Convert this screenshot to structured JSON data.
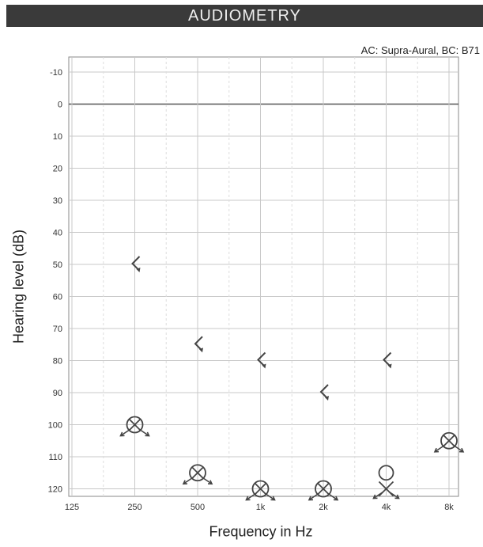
{
  "header": {
    "title": "AUDIOMETRY"
  },
  "subtitle": "AC: Supra-Aural, BC: B71",
  "chart_data": {
    "type": "scatter",
    "title": "AUDIOMETRY",
    "subtitle": "AC: Supra-Aural, BC: B71",
    "xlabel": "Frequency in Hz",
    "ylabel": "Hearing level (dB)",
    "x_categories": [
      "125",
      "250",
      "500",
      "1k",
      "2k",
      "4k",
      "8k"
    ],
    "ylim": [
      -10,
      120
    ],
    "y_ticks": [
      -10,
      0,
      10,
      20,
      30,
      40,
      50,
      60,
      70,
      80,
      90,
      100,
      110,
      120
    ],
    "y_inverted": true,
    "grid": true,
    "series": [
      {
        "symbol": "bc-right-masked-bracket",
        "points": [
          {
            "x": "250",
            "y": 50
          },
          {
            "x": "500",
            "y": 75
          },
          {
            "x": "1k",
            "y": 80
          },
          {
            "x": "2k",
            "y": 90
          },
          {
            "x": "4k",
            "y": 80
          }
        ]
      },
      {
        "symbol": "circled-x-no-response",
        "points": [
          {
            "x": "250",
            "y": 100
          },
          {
            "x": "500",
            "y": 115
          },
          {
            "x": "1k",
            "y": 120
          },
          {
            "x": "2k",
            "y": 120
          },
          {
            "x": "8k",
            "y": 105
          }
        ]
      },
      {
        "symbol": "circle-right-ac",
        "points": [
          {
            "x": "4k",
            "y": 115
          }
        ]
      },
      {
        "symbol": "x-left-ac-no-response",
        "points": [
          {
            "x": "4k",
            "y": 120
          }
        ]
      }
    ],
    "colors": {
      "marker": "#444444",
      "grid": "#c8c8c8",
      "zero_line": "#555555"
    }
  }
}
